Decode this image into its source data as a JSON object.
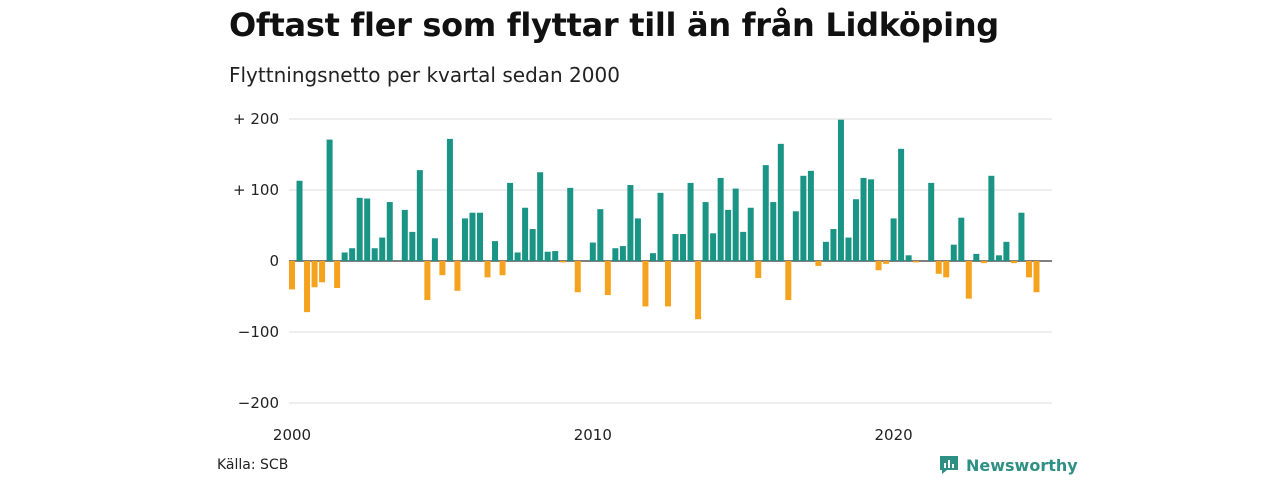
{
  "header": {
    "title": "Oftast fler som flyttar till än från Lidköping",
    "subtitle": "Flyttningsnetto per kvartal sedan 2000"
  },
  "footer": {
    "source": "Källa: SCB",
    "brand": "Newsworthy",
    "brand_icon": "bar-chart-speech-bubble-icon"
  },
  "colors": {
    "positive": "#1a9485",
    "negative": "#f5a31f",
    "grid": "#dddddd",
    "zero": "#333333",
    "brand": "#2e8f84"
  },
  "chart_data": {
    "type": "bar",
    "x_start": "2000 Q1",
    "x_ticks": [
      "2000",
      "2010",
      "2020"
    ],
    "y_ticks": [
      "+ 200",
      "+ 100",
      "0",
      "−100",
      "−200"
    ],
    "ylim": [
      -200,
      200
    ],
    "grid": true,
    "values": [
      -40,
      113,
      -72,
      -37,
      -30,
      171,
      -38,
      12,
      18,
      89,
      88,
      18,
      33,
      83,
      0,
      72,
      41,
      128,
      -55,
      32,
      -20,
      172,
      -42,
      60,
      68,
      68,
      -23,
      28,
      -20,
      110,
      12,
      75,
      45,
      125,
      13,
      14,
      -2,
      103,
      -44,
      0,
      26,
      73,
      -48,
      18,
      21,
      107,
      60,
      -64,
      11,
      96,
      -64,
      38,
      38,
      110,
      -82,
      83,
      39,
      117,
      72,
      102,
      41,
      75,
      -24,
      135,
      83,
      165,
      -55,
      70,
      120,
      127,
      -7,
      27,
      45,
      199,
      33,
      87,
      117,
      115,
      -13,
      -4,
      60,
      158,
      8,
      -2,
      0,
      110,
      -18,
      -23,
      23,
      61,
      -53,
      10,
      -3,
      120,
      8,
      27,
      -3,
      68,
      -23,
      -44
    ]
  }
}
